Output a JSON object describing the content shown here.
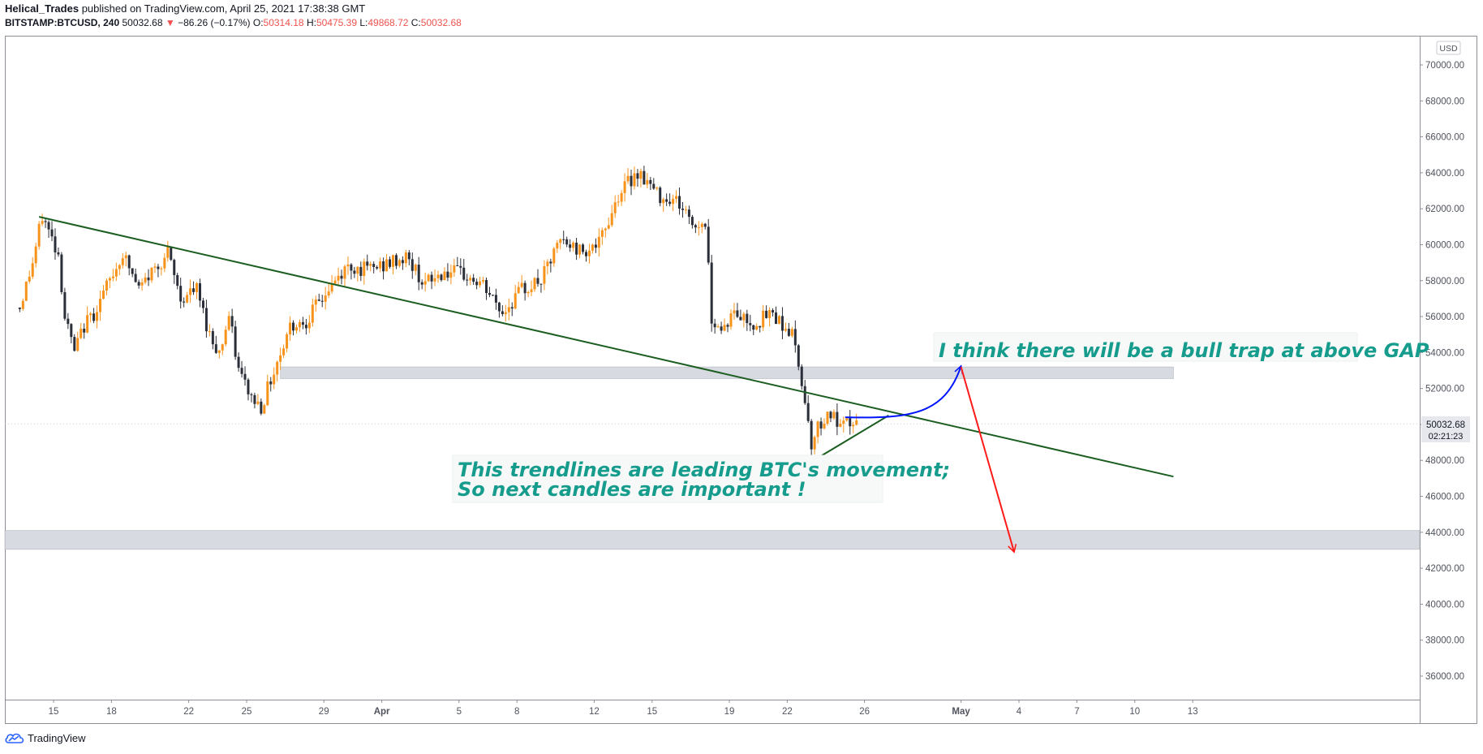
{
  "header": {
    "author": "Helical_Trades",
    "published": "published on TradingView.com, April 25, 2021 17:38:38 GMT",
    "symbol": "BITSTAMP:BTCUSD, 240",
    "last": "50032.68",
    "change": "−86.26 (−0.17%)",
    "o_label": "O:",
    "o_val": "50314.18",
    "h_label": "H:",
    "h_val": "50475.39",
    "l_label": "L:",
    "l_val": "49868.72",
    "c_label": "C:",
    "c_val": "50032.68"
  },
  "footer": {
    "brand": "TradingView"
  },
  "colors": {
    "up": "#f7931a",
    "down": "#2a2e39",
    "trend": "#1b5e20",
    "zone": "#d1d4dc",
    "text_annotation": "#169c8c",
    "arrow_blue": "#0015ff",
    "arrow_red": "#ff1a1a",
    "price_label_bg": "#e6e8ee"
  },
  "chart_data": {
    "type": "candlestick",
    "currency": "USD",
    "timeframe": "240",
    "ylim": [
      34500,
      71000
    ],
    "yticks": [
      "70000.00",
      "68000.00",
      "66000.00",
      "64000.00",
      "62000.00",
      "60000.00",
      "58000.00",
      "56000.00",
      "54000.00",
      "52000.00",
      "50000.00",
      "48000.00",
      "46000.00",
      "44000.00",
      "42000.00",
      "40000.00",
      "38000.00",
      "36000.00"
    ],
    "xticks": [
      "15",
      "18",
      "22",
      "25",
      "29",
      "Apr",
      "5",
      "8",
      "12",
      "15",
      "19",
      "22",
      "26",
      "May",
      "4",
      "7",
      "10",
      "13"
    ],
    "last_price": "50032.68",
    "countdown": "02:21:23",
    "anchors": [
      [
        "Mar 13 06:00",
        56500
      ],
      [
        "Mar 13 22:00",
        59000
      ],
      [
        "Mar 14 10:00",
        61600
      ],
      [
        "Mar 15 06:00",
        59500
      ],
      [
        "Mar 15 14:00",
        56000
      ],
      [
        "Mar 16 02:00",
        54000
      ],
      [
        "Mar 16 14:00",
        55500
      ],
      [
        "Mar 17 02:00",
        56200
      ],
      [
        "Mar 17 22:00",
        58000
      ],
      [
        "Mar 18 14:00",
        59500
      ],
      [
        "Mar 19 10:00",
        57500
      ],
      [
        "Mar 20 02:00",
        58500
      ],
      [
        "Mar 20 22:00",
        59500
      ],
      [
        "Mar 21 14:00",
        57000
      ],
      [
        "Mar 22 10:00",
        57500
      ],
      [
        "Mar 23 02:00",
        55000
      ],
      [
        "Mar 23 14:00",
        54000
      ],
      [
        "Mar 24 02:00",
        56000
      ],
      [
        "Mar 24 14:00",
        53000
      ],
      [
        "Mar 25 06:00",
        51500
      ],
      [
        "Mar 25 18:00",
        51000
      ],
      [
        "Mar 26 06:00",
        52500
      ],
      [
        "Mar 27 06:00",
        55500
      ],
      [
        "Mar 28 02:00",
        55800
      ],
      [
        "Mar 29 06:00",
        57500
      ],
      [
        "Mar 30 06:00",
        58800
      ],
      [
        "Mar 31 06:00",
        58600
      ],
      [
        "Apr 1 06:00",
        58900
      ],
      [
        "Apr 2 06:00",
        59300
      ],
      [
        "Apr 3 06:00",
        57800
      ],
      [
        "Apr 4 06:00",
        58500
      ],
      [
        "Apr 5 06:00",
        58300
      ],
      [
        "Apr 6 06:00",
        57700
      ],
      [
        "Apr 7 06:00",
        56200
      ],
      [
        "Apr 8 06:00",
        57500
      ],
      [
        "Apr 9 06:00",
        58000
      ],
      [
        "Apr 10 06:00",
        60200
      ],
      [
        "Apr 11 06:00",
        59700
      ],
      [
        "Apr 12 06:00",
        60000
      ],
      [
        "Apr 13 06:00",
        62800
      ],
      [
        "Apr 14 06:00",
        64100
      ],
      [
        "Apr 14 18:00",
        63500
      ],
      [
        "Apr 15 06:00",
        62800
      ],
      [
        "Apr 16 06:00",
        62500
      ],
      [
        "Apr 17 06:00",
        61000
      ],
      [
        "Apr 17 18:00",
        61300
      ],
      [
        "Apr 18 02:00",
        56000
      ],
      [
        "Apr 18 14:00",
        55300
      ],
      [
        "Apr 19 06:00",
        56200
      ],
      [
        "Apr 20 06:00",
        55600
      ],
      [
        "Apr 21 06:00",
        56200
      ],
      [
        "Apr 22 06:00",
        55000
      ],
      [
        "Apr 22 18:00",
        52500
      ],
      [
        "Apr 23 06:00",
        49000
      ],
      [
        "Apr 23 18:00",
        50200
      ],
      [
        "Apr 24 06:00",
        50600
      ],
      [
        "Apr 24 18:00",
        49700
      ],
      [
        "Apr 25 06:00",
        50100
      ],
      [
        "Apr 25 14:00",
        50032
      ]
    ],
    "zones": [
      {
        "from": "Mar 26 18:00",
        "to": "May 12 00:00",
        "low": 52550,
        "high": 53200
      },
      {
        "from": "chart-left",
        "to": "chart-right",
        "low": 43050,
        "high": 44100
      }
    ],
    "trendlines": [
      {
        "x1": "Mar 14 06:00",
        "y1": 61550,
        "x2": "May 12 00:00",
        "y2": 47100
      },
      {
        "x1": "Apr 22 18:00",
        "y1": 47600,
        "x2": "Apr 27 06:00",
        "y2": 50500
      }
    ],
    "arrows": [
      {
        "color": "blue",
        "x1": "Apr 25 00:00",
        "y1": 50400,
        "x2": "May 1 00:00",
        "y2": 53250
      },
      {
        "color": "red",
        "x1": "May 1 00:00",
        "y1": 53200,
        "x2": "May 3 18:00",
        "y2": 42900
      }
    ],
    "annotations": [
      {
        "lines": [
          "I think there will be a bull trap at above GAP"
        ]
      },
      {
        "lines": [
          "This trendlines are leading BTC's movement;",
          "So next candles are important !"
        ]
      }
    ]
  }
}
